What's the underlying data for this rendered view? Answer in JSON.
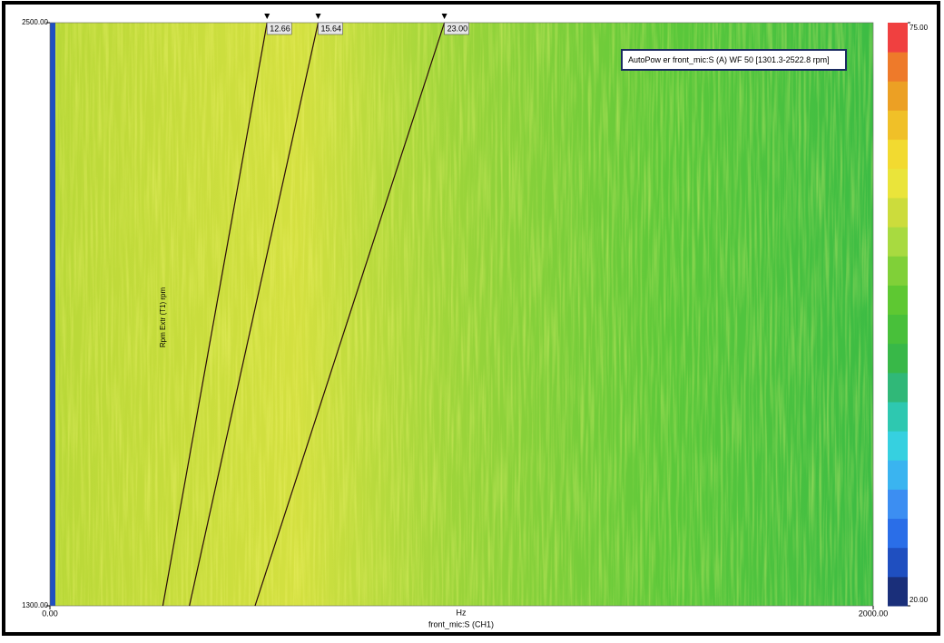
{
  "chart_data": {
    "type": "colormap",
    "title": "AutoPow er front_mic:S (A) WF 50 [1301.3-2522.8 rpm]",
    "x_label": "front_mic:S (CH1)",
    "x_unit": "Hz",
    "y_label": "Rpm Extr (T1) rpm",
    "xlim": [
      0,
      2000
    ],
    "xticks": [
      {
        "value": 0,
        "label": "0.00"
      },
      {
        "value": 2000,
        "label": "2000.00"
      }
    ],
    "ylim": [
      1300,
      2500
    ],
    "yticks": [
      {
        "value": 1300,
        "label": "1300.00"
      },
      {
        "value": 2500,
        "label": "2500.00"
      }
    ],
    "zlim": [
      20,
      75
    ],
    "zticks": [
      {
        "value": 20,
        "label": "20.00"
      },
      {
        "value": 75,
        "label": "75.00"
      }
    ],
    "colormap": [
      "#1a2f7a",
      "#1f4fc0",
      "#2a6ee8",
      "#3c8ef2",
      "#3ab4f0",
      "#36d0e0",
      "#2ec8b0",
      "#30b878",
      "#38b848",
      "#48c03a",
      "#5ec832",
      "#80d038",
      "#a8da40",
      "#ccdc3c",
      "#eae43a",
      "#f2da30",
      "#f0c028",
      "#eca024",
      "#ee7a2a",
      "#f04040"
    ],
    "orders": [
      12.66,
      15.64,
      {
        "value": 23,
        "label": "23.00"
      }
    ],
    "order_color": "#2a0a0a"
  }
}
